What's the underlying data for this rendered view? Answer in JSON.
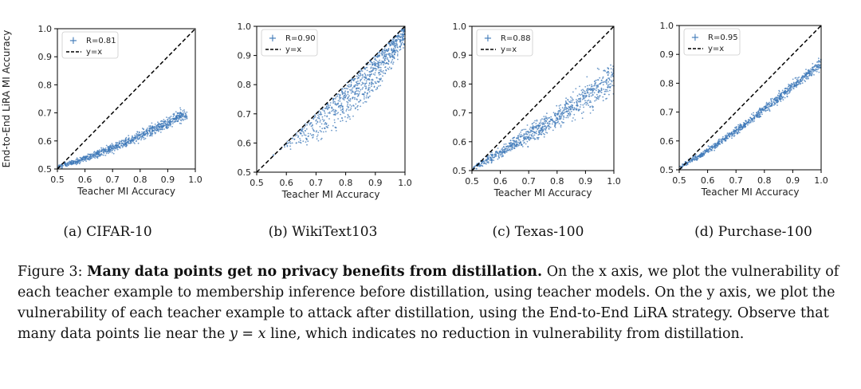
{
  "colors": {
    "points": "#3d78b8",
    "diagonal": "#000000"
  },
  "panels": [
    {
      "sublabel": "(a) CIFAR-10",
      "chart_data": {
        "type": "scatter",
        "xlabel": "Teacher MI Accuracy",
        "ylabel": "End-to-End LiRA MI Accuracy",
        "xlim": [
          0.5,
          1.0
        ],
        "ylim": [
          0.5,
          1.0
        ],
        "xticks": [
          "0.5",
          "0.6",
          "0.7",
          "0.8",
          "0.9",
          "1.0"
        ],
        "yticks": [
          "0.5",
          "0.6",
          "0.7",
          "0.8",
          "0.9",
          "1.0"
        ],
        "legend": [
          "R=0.81",
          "y=x"
        ],
        "legend_position": "top-left",
        "cloud": {
          "x_min": 0.5,
          "x_max": 0.97,
          "y_at_min": 0.51,
          "y_at_max": 0.7,
          "curve": 1.25,
          "spread": 0.025,
          "mode": "low"
        },
        "reference_line": "y=x"
      }
    },
    {
      "sublabel": "(b) WikiText103",
      "chart_data": {
        "type": "scatter",
        "xlabel": "Teacher MI Accuracy",
        "ylabel": "",
        "xlim": [
          0.5,
          1.0
        ],
        "ylim": [
          0.5,
          1.0
        ],
        "xticks": [
          "0.5",
          "0.6",
          "0.7",
          "0.8",
          "0.9",
          "1.0"
        ],
        "yticks": [
          "0.5",
          "0.6",
          "0.7",
          "0.8",
          "0.9",
          "1.0"
        ],
        "legend": [
          "R=0.90",
          "y=x"
        ],
        "legend_position": "top-left",
        "cloud": {
          "x_min": 0.55,
          "x_max": 1.0,
          "y_at_min": 0.58,
          "y_at_max": 0.98,
          "curve": 1.0,
          "spread": 0.05,
          "mode": "wiki"
        },
        "reference_line": "y=x"
      }
    },
    {
      "sublabel": "(c) Texas-100",
      "chart_data": {
        "type": "scatter",
        "xlabel": "Teacher MI Accuracy",
        "ylabel": "",
        "xlim": [
          0.5,
          1.0
        ],
        "ylim": [
          0.5,
          1.0
        ],
        "xticks": [
          "0.5",
          "0.6",
          "0.7",
          "0.8",
          "0.9",
          "1.0"
        ],
        "yticks": [
          "0.5",
          "0.6",
          "0.7",
          "0.8",
          "0.9",
          "1.0"
        ],
        "legend": [
          "R=0.88",
          "y=x"
        ],
        "legend_position": "top-left",
        "cloud": {
          "x_min": 0.5,
          "x_max": 1.0,
          "y_at_min": 0.51,
          "y_at_max": 0.82,
          "curve": 1.1,
          "spread": 0.04,
          "mode": "fan"
        },
        "reference_line": "y=x"
      }
    },
    {
      "sublabel": "(d) Purchase-100",
      "chart_data": {
        "type": "scatter",
        "xlabel": "Teacher MI Accuracy",
        "ylabel": "",
        "xlim": [
          0.5,
          1.0
        ],
        "ylim": [
          0.5,
          1.0
        ],
        "xticks": [
          "0.5",
          "0.6",
          "0.7",
          "0.8",
          "0.9",
          "1.0"
        ],
        "yticks": [
          "0.5",
          "0.6",
          "0.7",
          "0.8",
          "0.9",
          "1.0"
        ],
        "legend": [
          "R=0.95",
          "y=x"
        ],
        "legend_position": "top-left",
        "cloud": {
          "x_min": 0.5,
          "x_max": 1.0,
          "y_at_min": 0.51,
          "y_at_max": 0.87,
          "curve": 1.15,
          "spread": 0.022,
          "mode": "tight"
        },
        "reference_line": "y=x"
      }
    }
  ],
  "caption": {
    "label": "Figure 3:",
    "bold": "Many data points get no privacy benefits from distillation.",
    "text1": "On the x axis, we plot the vulnerability of each teacher example to membership inference before distillation, using teacher models. On the y axis, we plot the vulnerability of each teacher example to attack after distillation, using the End-to-End LiRA strategy. Observe that many data points lie near the",
    "math": "y = x",
    "text2": "line, which indicates no reduction in vulnerability from distillation."
  }
}
